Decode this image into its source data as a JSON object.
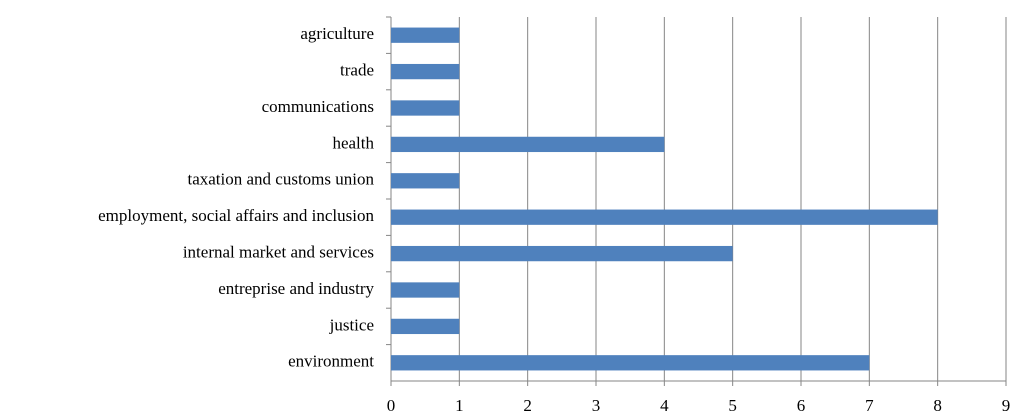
{
  "chart_data": {
    "type": "bar",
    "orientation": "horizontal",
    "categories": [
      "agriculture",
      "trade",
      "communications",
      "health",
      "taxation and customs union",
      "employment, social affairs and inclusion",
      "internal market and services",
      "entreprise and industry",
      "justice",
      "environment"
    ],
    "values": [
      1,
      1,
      1,
      4,
      1,
      8,
      5,
      1,
      1,
      7
    ],
    "color": "#4f81bd",
    "xlim": [
      0,
      9
    ],
    "xticks": [
      0,
      1,
      2,
      3,
      4,
      5,
      6,
      7,
      8,
      9
    ],
    "grid": true
  }
}
